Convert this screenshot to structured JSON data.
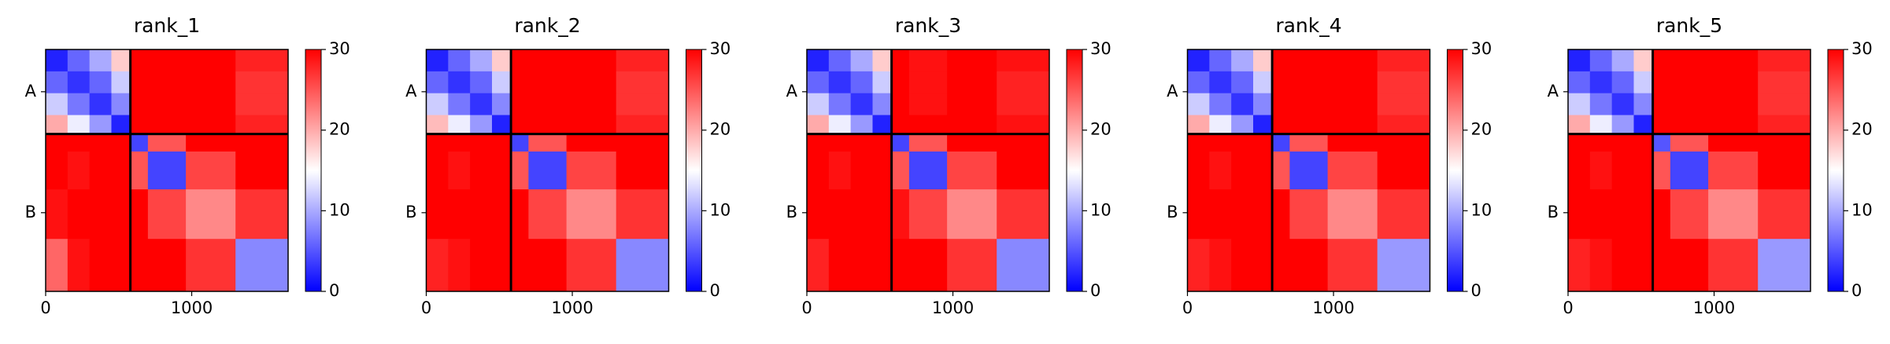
{
  "chart_data": [
    {
      "type": "heatmap",
      "title": "rank_1",
      "colormap": "bwr",
      "clim": [
        0,
        30
      ],
      "cticks": [
        0,
        10,
        20,
        30
      ],
      "x": [
        0,
        150,
        300,
        450,
        580,
        700,
        960,
        1300,
        1660
      ],
      "y": [
        0,
        150,
        300,
        450,
        580,
        700,
        960,
        1300,
        1660
      ],
      "xlim": [
        0,
        1660
      ],
      "ylim": [
        1660,
        0
      ],
      "xticks": [
        0,
        1000
      ],
      "yticks": [
        {
          "value": 290,
          "label": "A"
        },
        {
          "value": 1120,
          "label": "B"
        }
      ],
      "chain_boundaries": [
        580
      ],
      "values": [
        [
          2,
          6,
          10,
          18,
          30,
          30,
          30,
          28
        ],
        [
          6,
          3,
          6,
          12,
          30,
          30,
          30,
          27
        ],
        [
          12,
          7,
          3,
          8,
          30,
          30,
          30,
          27
        ],
        [
          20,
          14,
          9,
          2,
          30,
          30,
          30,
          28
        ],
        [
          30,
          30,
          30,
          30,
          4,
          25,
          30,
          30
        ],
        [
          30,
          29,
          30,
          30,
          25,
          4,
          26,
          30
        ],
        [
          29,
          30,
          30,
          30,
          30,
          26,
          22,
          27
        ],
        [
          24,
          29,
          30,
          30,
          30,
          30,
          27,
          8
        ]
      ]
    },
    {
      "type": "heatmap",
      "title": "rank_2",
      "colormap": "bwr",
      "clim": [
        0,
        30
      ],
      "cticks": [
        0,
        10,
        20,
        30
      ],
      "x": [
        0,
        150,
        300,
        450,
        580,
        700,
        960,
        1300,
        1660
      ],
      "y": [
        0,
        150,
        300,
        450,
        580,
        700,
        960,
        1300,
        1660
      ],
      "xlim": [
        0,
        1660
      ],
      "ylim": [
        1660,
        0
      ],
      "xticks": [
        0,
        1000
      ],
      "yticks": [
        {
          "value": 290,
          "label": "A"
        },
        {
          "value": 1120,
          "label": "B"
        }
      ],
      "chain_boundaries": [
        580
      ],
      "values": [
        [
          2,
          6,
          10,
          18,
          30,
          30,
          30,
          28
        ],
        [
          6,
          3,
          6,
          12,
          30,
          30,
          30,
          27
        ],
        [
          12,
          7,
          3,
          8,
          30,
          30,
          30,
          27
        ],
        [
          19,
          14,
          9,
          2,
          30,
          30,
          30,
          28
        ],
        [
          30,
          30,
          30,
          30,
          4,
          25,
          30,
          30
        ],
        [
          30,
          29,
          30,
          30,
          25,
          4,
          26,
          30
        ],
        [
          30,
          30,
          30,
          30,
          30,
          26,
          22,
          27
        ],
        [
          28,
          29,
          30,
          30,
          30,
          30,
          27,
          8
        ]
      ]
    },
    {
      "type": "heatmap",
      "title": "rank_3",
      "colormap": "bwr",
      "clim": [
        0,
        30
      ],
      "cticks": [
        0,
        10,
        20,
        30
      ],
      "x": [
        0,
        150,
        300,
        450,
        580,
        700,
        960,
        1300,
        1660
      ],
      "y": [
        0,
        150,
        300,
        450,
        580,
        700,
        960,
        1300,
        1660
      ],
      "xlim": [
        0,
        1660
      ],
      "ylim": [
        1660,
        0
      ],
      "xticks": [
        0,
        1000
      ],
      "yticks": [
        {
          "value": 290,
          "label": "A"
        },
        {
          "value": 1120,
          "label": "B"
        }
      ],
      "chain_boundaries": [
        580
      ],
      "values": [
        [
          2,
          6,
          10,
          18,
          30,
          29,
          30,
          29
        ],
        [
          6,
          3,
          6,
          12,
          30,
          29,
          30,
          28
        ],
        [
          12,
          7,
          3,
          8,
          30,
          29,
          30,
          28
        ],
        [
          20,
          14,
          9,
          2,
          30,
          30,
          30,
          29
        ],
        [
          30,
          30,
          30,
          30,
          4,
          25,
          30,
          30
        ],
        [
          30,
          29,
          30,
          30,
          25,
          4,
          26,
          30
        ],
        [
          30,
          30,
          30,
          30,
          29,
          26,
          22,
          27
        ],
        [
          28,
          30,
          30,
          30,
          30,
          30,
          27,
          8
        ]
      ]
    },
    {
      "type": "heatmap",
      "title": "rank_4",
      "colormap": "bwr",
      "clim": [
        0,
        30
      ],
      "cticks": [
        0,
        10,
        20,
        30
      ],
      "x": [
        0,
        150,
        300,
        450,
        580,
        700,
        960,
        1300,
        1660
      ],
      "y": [
        0,
        150,
        300,
        450,
        580,
        700,
        960,
        1300,
        1660
      ],
      "xlim": [
        0,
        1660
      ],
      "ylim": [
        1660,
        0
      ],
      "xticks": [
        0,
        1000
      ],
      "yticks": [
        {
          "value": 290,
          "label": "A"
        },
        {
          "value": 1120,
          "label": "B"
        }
      ],
      "chain_boundaries": [
        580
      ],
      "values": [
        [
          2,
          6,
          10,
          18,
          30,
          30,
          30,
          28
        ],
        [
          6,
          3,
          6,
          12,
          30,
          30,
          30,
          27
        ],
        [
          12,
          7,
          3,
          8,
          30,
          30,
          30,
          27
        ],
        [
          20,
          14,
          9,
          2,
          30,
          30,
          30,
          28
        ],
        [
          30,
          30,
          30,
          30,
          4,
          25,
          30,
          30
        ],
        [
          30,
          29,
          30,
          30,
          25,
          4,
          26,
          30
        ],
        [
          30,
          30,
          30,
          30,
          30,
          26,
          22,
          27
        ],
        [
          28,
          29,
          30,
          30,
          30,
          30,
          27,
          9
        ]
      ]
    },
    {
      "type": "heatmap",
      "title": "rank_5",
      "colormap": "bwr",
      "clim": [
        0,
        30
      ],
      "cticks": [
        0,
        10,
        20,
        30
      ],
      "x": [
        0,
        150,
        300,
        450,
        580,
        700,
        960,
        1300,
        1660
      ],
      "y": [
        0,
        150,
        300,
        450,
        580,
        700,
        960,
        1300,
        1660
      ],
      "xlim": [
        0,
        1660
      ],
      "ylim": [
        1660,
        0
      ],
      "xticks": [
        0,
        1000
      ],
      "yticks": [
        {
          "value": 290,
          "label": "A"
        },
        {
          "value": 1120,
          "label": "B"
        }
      ],
      "chain_boundaries": [
        580
      ],
      "values": [
        [
          2,
          6,
          10,
          18,
          30,
          30,
          30,
          28
        ],
        [
          6,
          3,
          6,
          12,
          30,
          30,
          30,
          27
        ],
        [
          12,
          7,
          3,
          8,
          30,
          30,
          30,
          27
        ],
        [
          20,
          14,
          9,
          2,
          30,
          30,
          30,
          28
        ],
        [
          30,
          30,
          30,
          30,
          5,
          25,
          30,
          30
        ],
        [
          30,
          29,
          30,
          30,
          25,
          4,
          26,
          30
        ],
        [
          30,
          30,
          30,
          30,
          30,
          26,
          22,
          27
        ],
        [
          28,
          29,
          30,
          30,
          30,
          30,
          27,
          9
        ]
      ]
    }
  ]
}
